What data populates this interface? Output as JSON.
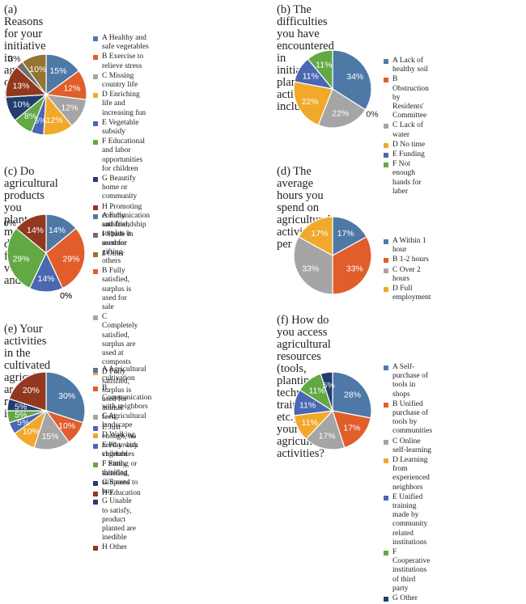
{
  "palette": [
    "#4e79a7",
    "#e15d2a",
    "#a5a5a5",
    "#f0a92b",
    "#4a67b2",
    "#62a843",
    "#233d6f",
    "#92381f",
    "#6f6f6f",
    "#957432"
  ],
  "chart_data": [
    {
      "type": "pie",
      "title": "(a) Reasons for your initiative\nin agricultural cultivation is:",
      "legend": [
        "A Healthy and safe vegetables",
        "B Exercise to relieve stress",
        "C Missing country life",
        "D Enriching life and increasing fun",
        "E Vegetable subsidy",
        "F Educational and labor\nopportunities for children",
        "G Beautify home or community",
        "H Promoting communication and friendship",
        "I Shade in summer",
        "J Other"
      ],
      "values": [
        15,
        12,
        12,
        12,
        5,
        8,
        10,
        13,
        3,
        10
      ],
      "labels": [
        "15%",
        "12%",
        "12%",
        "12%",
        "5%",
        "8%",
        "10%",
        "13%",
        "3%",
        "10%"
      ],
      "legend_position": "right"
    },
    {
      "type": "pie",
      "title": "(b) The difficulties you have encountered in\ninitiating planting activities include?",
      "legend": [
        "A Lack of healthy soil",
        "B Obstruction by\nResidents' Committee",
        "C Lack of water",
        "D No time",
        "E Funding",
        "F Not enough hands for laber"
      ],
      "values": [
        34,
        0,
        22,
        22,
        11,
        11
      ],
      "labels": [
        "34%",
        "0%",
        "22%",
        "22%",
        "11%",
        "11%"
      ],
      "legend_position": "right"
    },
    {
      "type": "pie",
      "title": "(c) Do agricultural products you\nplanted meet your daily need\nfor vegetables and fruits?",
      "legend": [
        "A Fully satisfied, surplus is used for gifting others",
        "B Fully satisfied, surplus is used for sale",
        "C Completely satisfied, surplus are used at composts",
        "D Fully satisfied, surplus is used for animal feed",
        "E Just enough, no need to buy vegetables",
        "F Partly satisfied, still need to buy",
        "G Unable to satisfy, product planted are inedible",
        "H Other"
      ],
      "values": [
        14,
        29,
        0,
        0,
        14,
        29,
        0,
        14
      ],
      "labels": [
        "14%",
        "29%",
        "0%",
        "0%",
        "14%",
        "29%",
        "0%",
        "14%"
      ],
      "legend_position": "right"
    },
    {
      "type": "pie",
      "title": "(d) The average hours you spend on\nagricultural activities per day is:",
      "legend": [
        "A Within 1 hour",
        "B 1-2 hours",
        "C Over 2 hours",
        "D Full employment"
      ],
      "values": [
        17,
        33,
        33,
        17
      ],
      "labels": [
        "17%",
        "33%",
        "33%",
        "17%"
      ],
      "legend_position": "right"
    },
    {
      "type": "pie",
      "title": "(e) Your activities in the cultivated\nagricultural area mainly include:",
      "legend": [
        "A Agricultural cultivation",
        "B Communication with neighbors",
        "C Agricultural landscape",
        "D Walking",
        "E Play with children",
        "F Sitting or thinking",
        "G Sports",
        "H Education"
      ],
      "values": [
        30,
        10,
        15,
        10,
        5,
        5,
        5,
        20
      ],
      "labels": [
        "30%",
        "10%",
        "15%",
        "10%",
        "5%",
        "5%",
        "5%",
        "20%"
      ],
      "legend_position": "right"
    },
    {
      "type": "pie",
      "title": "(f) How do you access agricultural\nresources (tools, planting techniques,\ntraining, etc.) in your agricultural activities?",
      "legend": [
        "A Self-purchase of tools in shops",
        "B Unified purchase of\ntools by communities",
        "C Online self-learning",
        "D Learning from experienced neighbors",
        "E Unified training made by\ncommunity related institutions",
        "F Cooperative institutions of third party",
        "G Other"
      ],
      "values": [
        28,
        17,
        17,
        11,
        11,
        11,
        5
      ],
      "labels": [
        "28%",
        "17%",
        "17%",
        "11%",
        "11%",
        "11%",
        "5%"
      ],
      "legend_position": "right"
    }
  ]
}
